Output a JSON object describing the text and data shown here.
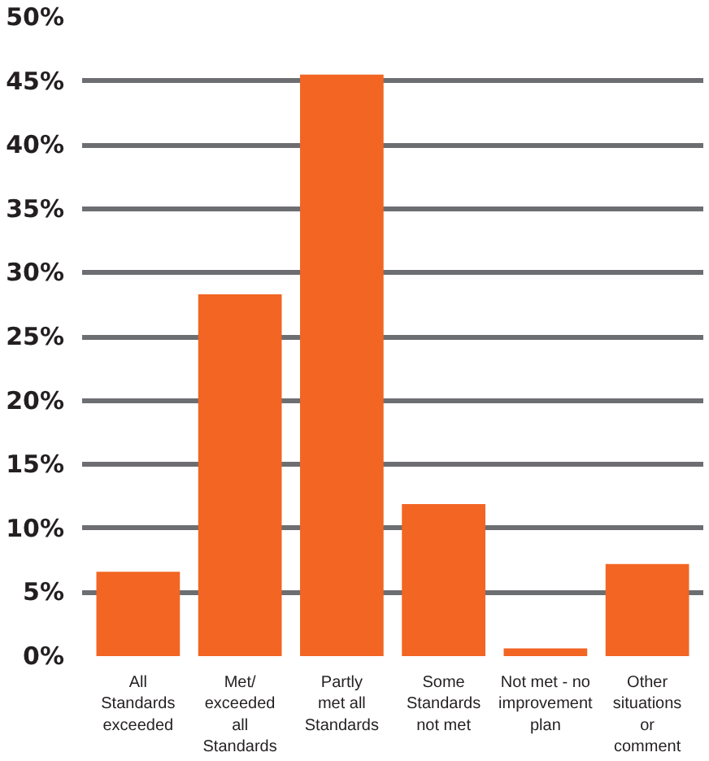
{
  "chart_data": {
    "type": "bar",
    "categories": [
      "All\nStandards\nexceeded",
      "Met/\nexceeded\nall\nStandards",
      "Partly\nmet all\nStandards",
      "Some\nStandards\nnot met",
      "Not met - no\nimprovement\nplan",
      "Other\nsituations\nor\ncomment"
    ],
    "values": [
      6.6,
      28.3,
      45.5,
      11.9,
      0.6,
      7.2
    ],
    "color": "#f26522",
    "ylim": [
      0,
      50
    ],
    "yticks": [
      {
        "value": 0,
        "label": "0%"
      },
      {
        "value": 5,
        "label": "5%"
      },
      {
        "value": 10,
        "label": "10%"
      },
      {
        "value": 15,
        "label": "15%"
      },
      {
        "value": 20,
        "label": "20%"
      },
      {
        "value": 25,
        "label": "25%"
      },
      {
        "value": 30,
        "label": "30%"
      },
      {
        "value": 35,
        "label": "35%"
      },
      {
        "value": 40,
        "label": "40%"
      },
      {
        "value": 45,
        "label": "45%"
      },
      {
        "value": 50,
        "label": "50%"
      }
    ],
    "grid": "y"
  }
}
